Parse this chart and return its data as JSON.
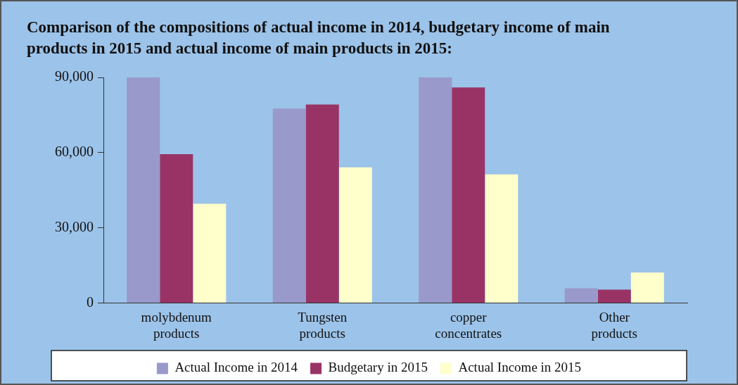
{
  "chart_data": {
    "type": "bar",
    "title": "Comparison of the compositions of actual income in 2014, budgetary income of main products in 2015 and actual income of main products in 2015:",
    "categories": [
      "molybdenum products",
      "Tungsten products",
      "copper concentrates",
      "Other products"
    ],
    "series": [
      {
        "name": "Actual Income in 2014",
        "color": "#9999cc",
        "values": [
          90000,
          77600,
          90000,
          5900
        ]
      },
      {
        "name": "Budgetary in 2015",
        "color": "#993366",
        "values": [
          59400,
          79200,
          86000,
          5300
        ]
      },
      {
        "name": "Actual Income in 2015",
        "color": "#ffffcc",
        "values": [
          39600,
          54100,
          51300,
          12100
        ]
      }
    ],
    "ylim": [
      0,
      90000
    ],
    "yticks": [
      0,
      {
        "value": 30000,
        "label": "30,000"
      },
      {
        "value": 60000,
        "label": "60,000"
      },
      {
        "value": 90000,
        "label": "90,000"
      }
    ],
    "grid": false,
    "legend": "bottom"
  }
}
